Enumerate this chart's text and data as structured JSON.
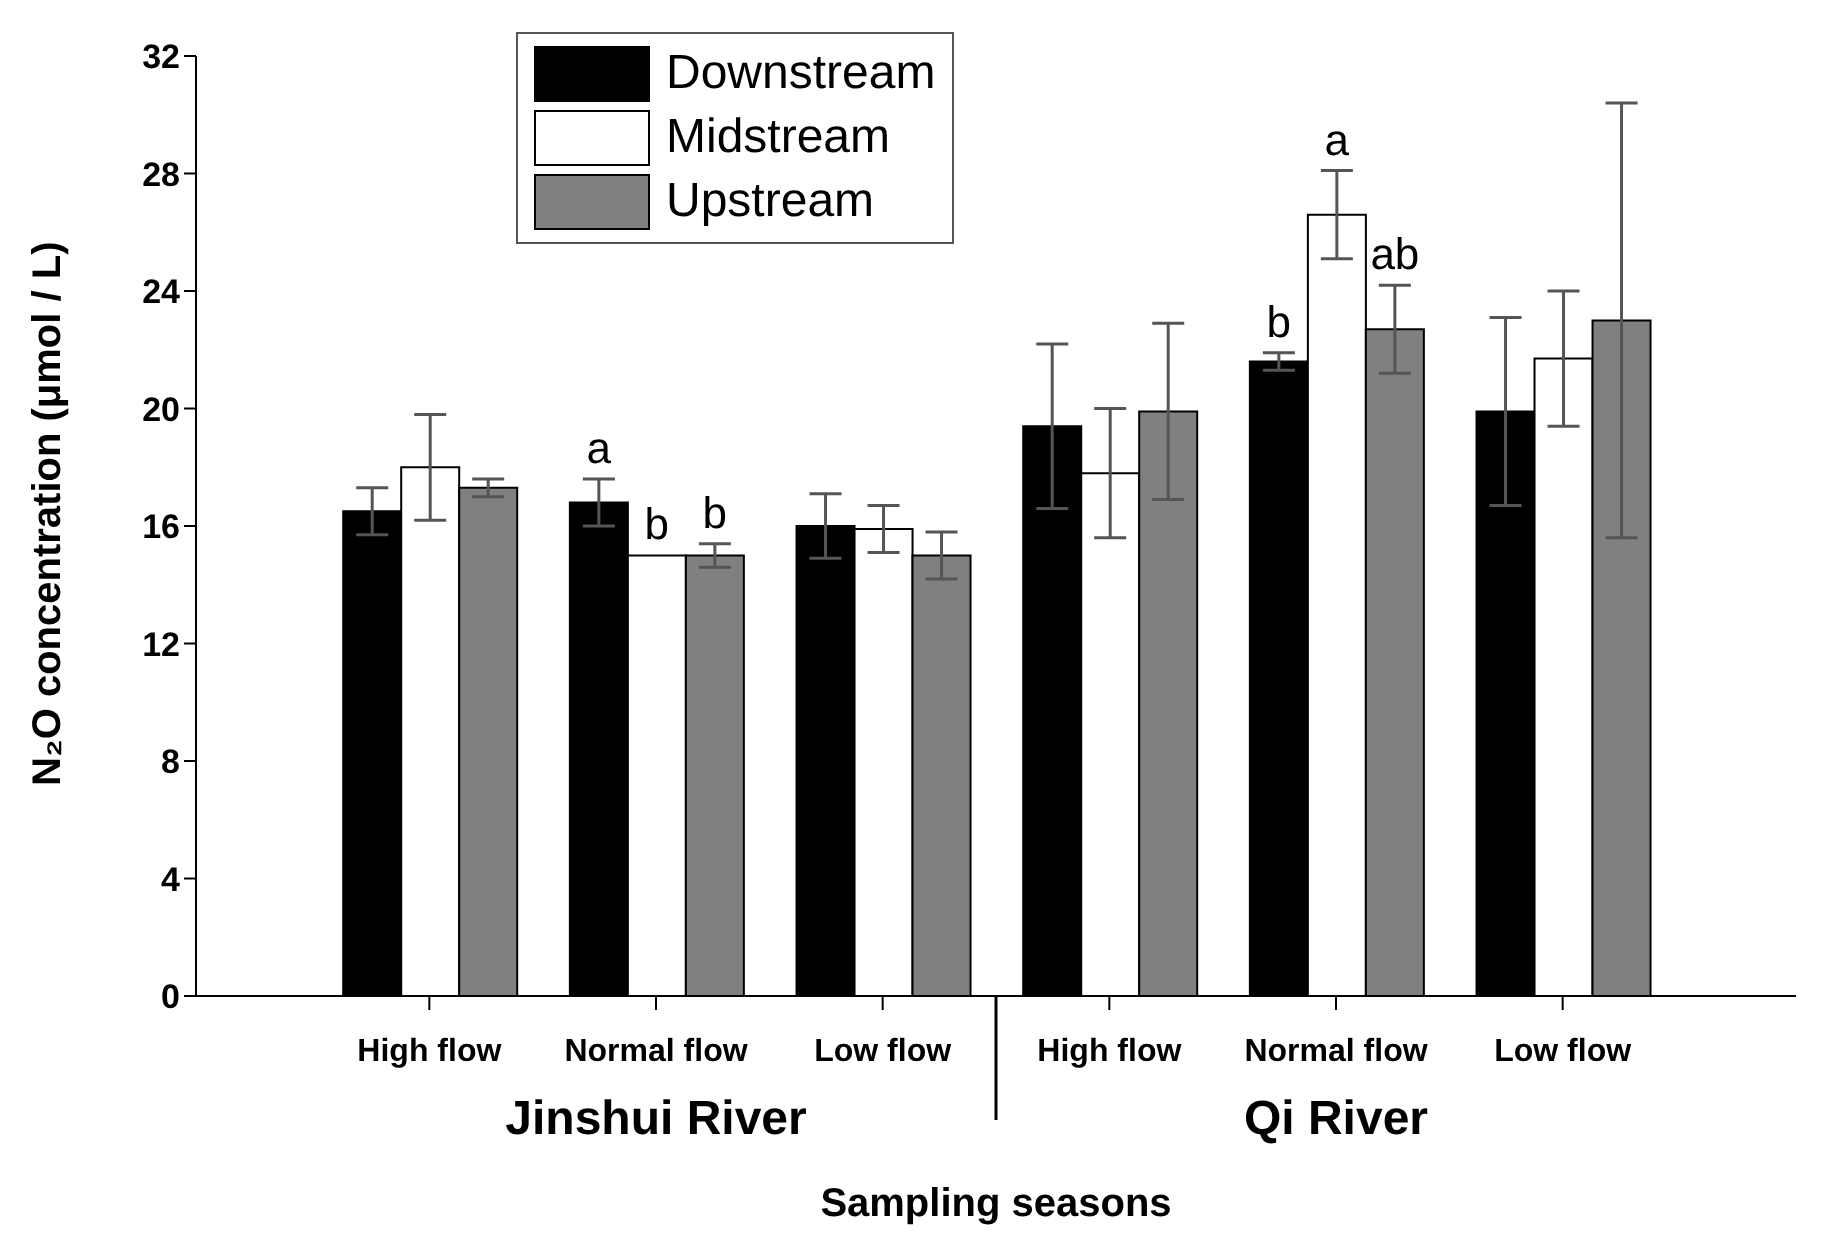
{
  "chart_data": {
    "type": "bar",
    "xlabel": "Sampling seasons",
    "ylabel": "N₂O concentration (μmol / L)",
    "categories": [
      "High flow",
      "Normal flow",
      "Low flow",
      "High flow",
      "Normal flow",
      "Low flow"
    ],
    "series": [
      {
        "name": "Downstream",
        "color": "#000000",
        "values": [
          16.5,
          16.8,
          16.0,
          19.4,
          21.6,
          19.9
        ],
        "errors": [
          0.8,
          0.8,
          1.1,
          2.8,
          0.3,
          3.2
        ],
        "value_labels": [
          null,
          "a",
          null,
          null,
          "b",
          null
        ]
      },
      {
        "name": "Midstream",
        "color": "#ffffff",
        "values": [
          18.0,
          15.0,
          15.9,
          17.8,
          26.6,
          21.7
        ],
        "errors": [
          1.8,
          null,
          0.8,
          2.2,
          1.5,
          2.3
        ],
        "value_labels": [
          null,
          "b",
          null,
          null,
          "a",
          null
        ]
      },
      {
        "name": "Upstream",
        "color": "#808080",
        "values": [
          17.3,
          15.0,
          15.0,
          19.9,
          22.7,
          23.0
        ],
        "errors": [
          0.3,
          0.4,
          0.8,
          3.0,
          1.5,
          7.4
        ],
        "value_labels": [
          null,
          "b",
          null,
          null,
          "ab",
          null
        ]
      }
    ],
    "annotations": [
      "Jinshui River",
      "Qi River"
    ],
    "ylim": [
      0,
      32
    ],
    "yticks": [
      0,
      4,
      8,
      12,
      16,
      20,
      24,
      28,
      32
    ],
    "legend": "top"
  }
}
